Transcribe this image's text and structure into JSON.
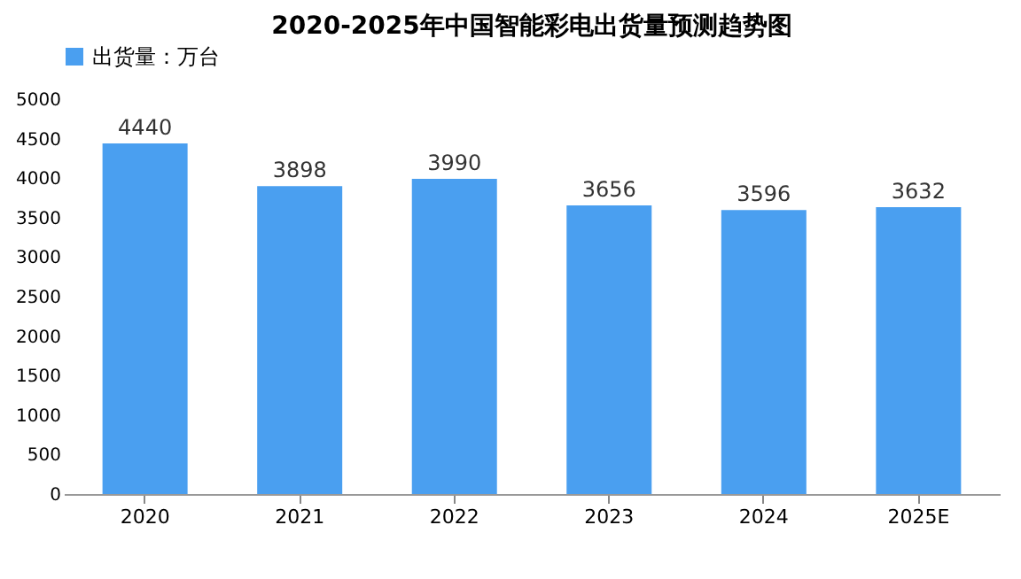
{
  "chart_data": {
    "type": "bar",
    "title": "2020-2025年中国智能彩电出货量预测趋势图",
    "categories": [
      "2020",
      "2021",
      "2022",
      "2023",
      "2024",
      "2025E"
    ],
    "series": [
      {
        "name": "出货量：万台",
        "color": "#4a9ff0",
        "values": [
          4440,
          3898,
          3990,
          3656,
          3596,
          3632
        ]
      }
    ],
    "ylim": [
      0,
      5000
    ],
    "yticks": [
      0,
      500,
      1000,
      1500,
      2000,
      2500,
      3000,
      3500,
      4000,
      4500,
      5000
    ],
    "grid": false,
    "legend": "top",
    "data_labels": true
  }
}
